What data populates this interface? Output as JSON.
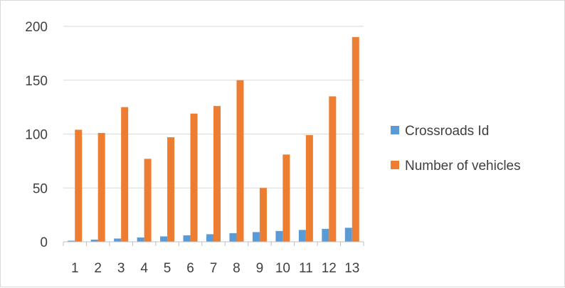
{
  "chart_data": {
    "type": "bar",
    "categories": [
      "1",
      "2",
      "3",
      "4",
      "5",
      "6",
      "7",
      "8",
      "9",
      "10",
      "11",
      "12",
      "13"
    ],
    "series": [
      {
        "name": "Crossroads Id",
        "color": "#5b9bd5",
        "values": [
          1,
          2,
          3,
          4,
          5,
          6,
          7,
          8,
          9,
          10,
          11,
          12,
          13
        ]
      },
      {
        "name": "Number of vehicles",
        "color": "#ed7d31",
        "values": [
          104,
          101,
          125,
          77,
          97,
          119,
          126,
          150,
          50,
          81,
          99,
          135,
          190
        ]
      }
    ],
    "yticks": [
      "0",
      "50",
      "100",
      "150",
      "200"
    ],
    "ylim": [
      0,
      200
    ],
    "grid": true,
    "legend_position": "right",
    "title": "",
    "xlabel": "",
    "ylabel": ""
  }
}
